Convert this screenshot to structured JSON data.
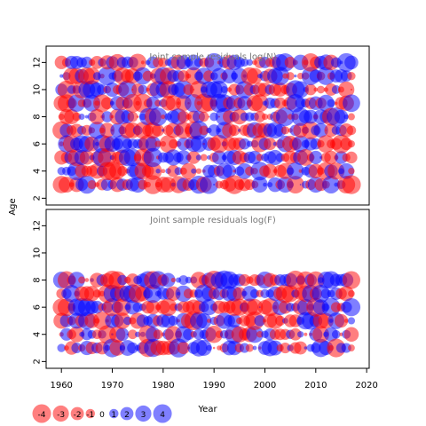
{
  "chart_data": {
    "type": "scatter",
    "panels": [
      {
        "title": "Joint sample residuals log(N)",
        "xlim": [
          1957,
          2020.5
        ],
        "ylim": [
          1.5,
          13.2
        ],
        "y_ticks": [
          2,
          4,
          6,
          8,
          10,
          12
        ],
        "ages": [
          3,
          4,
          5,
          6,
          7,
          8,
          9,
          10,
          11,
          12
        ],
        "years": [
          1960,
          2017
        ]
      },
      {
        "title": "Joint sample residuals log(F)",
        "xlim": [
          1957,
          2020.5
        ],
        "ylim": [
          1.5,
          13.2
        ],
        "y_ticks": [
          2,
          4,
          6,
          8,
          10,
          12
        ],
        "ages": [
          3,
          4,
          5,
          6,
          7,
          8
        ],
        "years": [
          1960,
          2017
        ]
      }
    ],
    "x_ticks": [
      1960,
      1970,
      1980,
      1990,
      2000,
      2010,
      2020
    ],
    "xlabel": "Year",
    "ylabel": "Age",
    "legend": {
      "values": [
        -4,
        -3,
        -2,
        -1,
        0,
        1,
        2,
        3,
        4
      ],
      "labels": [
        "-4",
        "-3",
        "-2",
        "-1",
        "0",
        "1",
        "2",
        "3",
        "4"
      ],
      "placement": "bottom-left"
    },
    "colors": {
      "negative": "#ff0000",
      "positive": "#0000ff"
    },
    "marker_opacity": 0.5
  }
}
